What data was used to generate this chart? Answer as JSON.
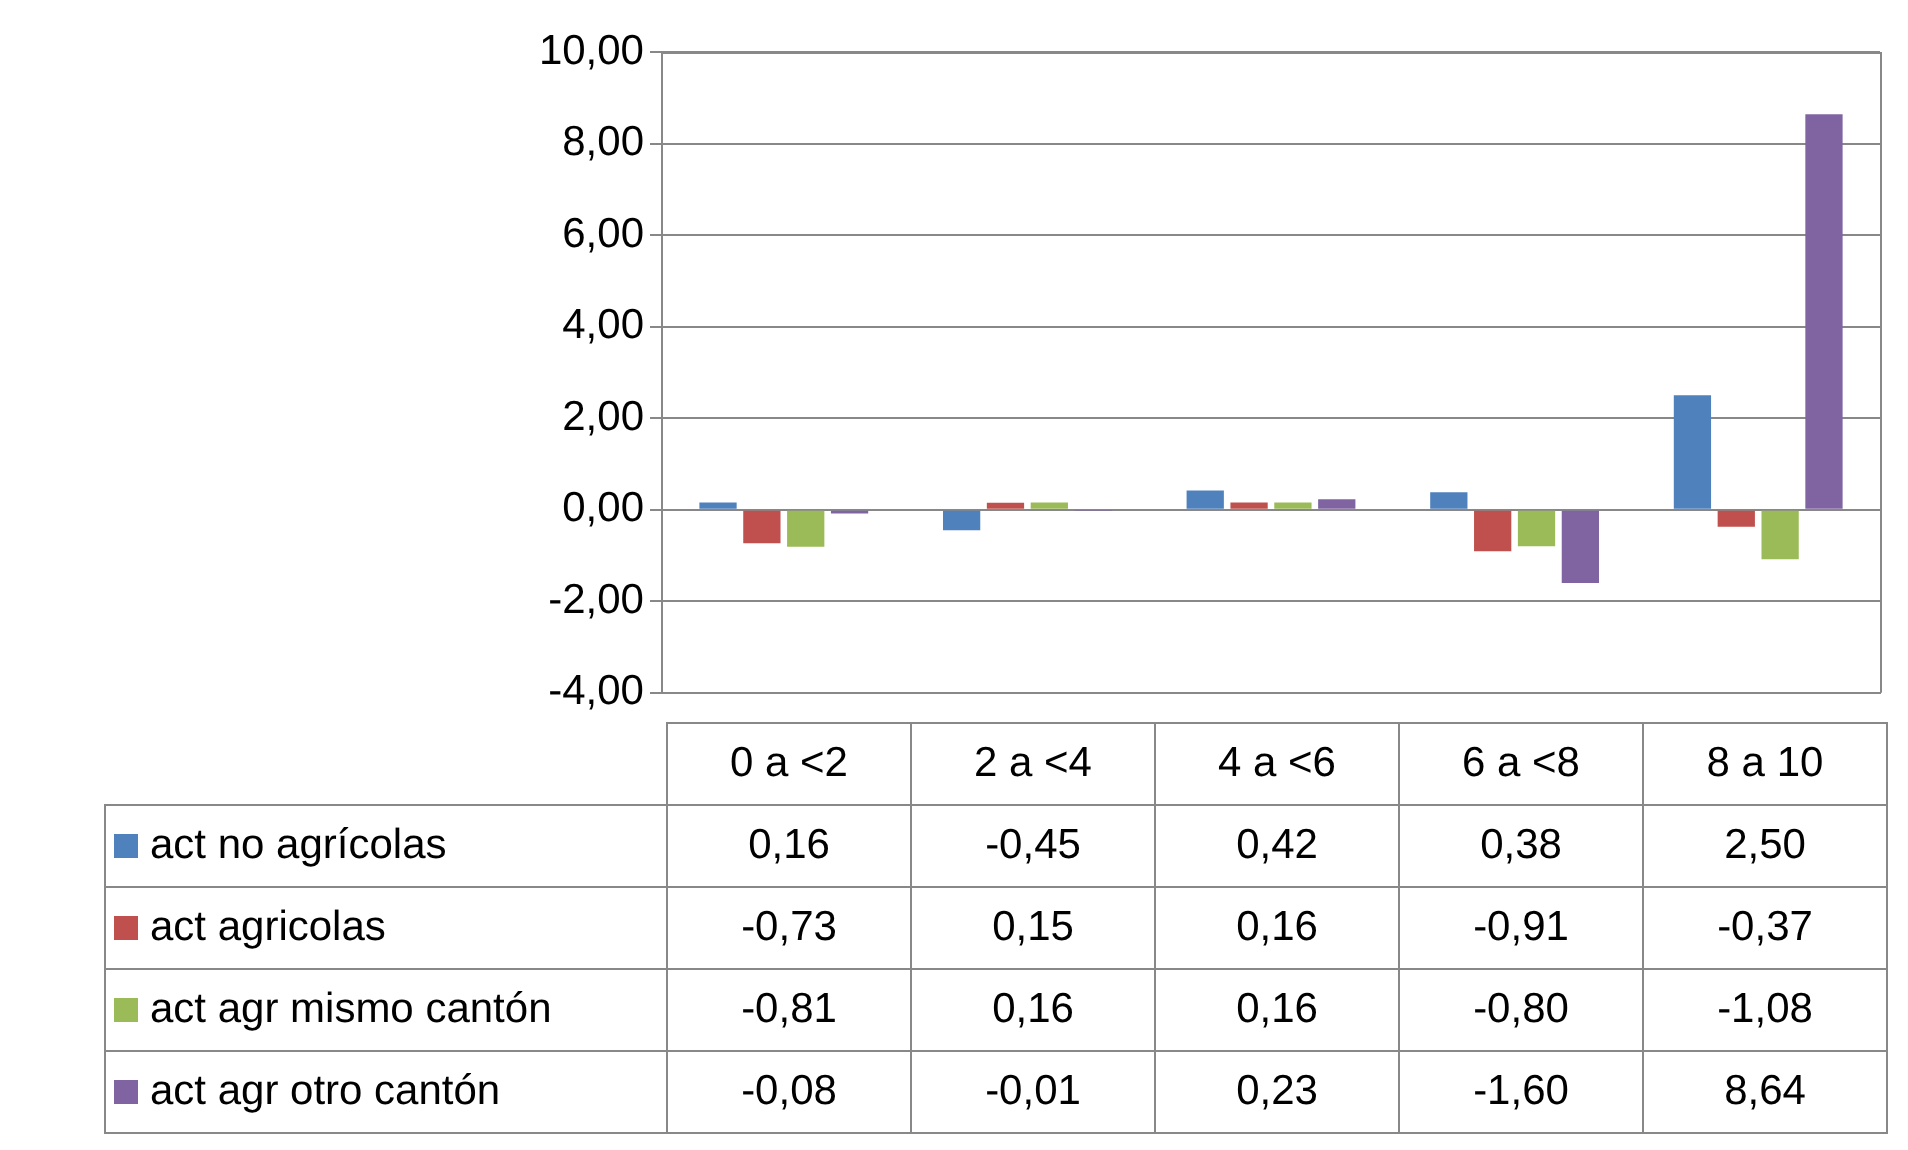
{
  "chart_data": {
    "type": "bar",
    "categories": [
      "0 a <2",
      "2 a <4",
      "4 a <6",
      "6 a <8",
      "8 a 10"
    ],
    "series": [
      {
        "name": "act no agrícolas",
        "color": "#4f81bd",
        "values": [
          0.16,
          -0.45,
          0.42,
          0.38,
          2.5
        ],
        "value_labels": [
          "0,16",
          "-0,45",
          "0,42",
          "0,38",
          "2,50"
        ]
      },
      {
        "name": "act agricolas",
        "color": "#c0504d",
        "values": [
          -0.73,
          0.15,
          0.16,
          -0.91,
          -0.37
        ],
        "value_labels": [
          "-0,73",
          "0,15",
          "0,16",
          "-0,91",
          "-0,37"
        ]
      },
      {
        "name": "act agr mismo cantón",
        "color": "#9bbb59",
        "values": [
          -0.81,
          0.16,
          0.16,
          -0.8,
          -1.08
        ],
        "value_labels": [
          "-0,81",
          "0,16",
          "0,16",
          "-0,80",
          "-1,08"
        ]
      },
      {
        "name": "act agr otro cantón",
        "color": "#8064a2",
        "values": [
          -0.08,
          -0.01,
          0.23,
          -1.6,
          8.64
        ],
        "value_labels": [
          "-0,08",
          "-0,01",
          "0,23",
          "-1,60",
          "8,64"
        ]
      }
    ],
    "ylim": [
      -4,
      10
    ],
    "yticks": [
      {
        "value": -4,
        "label": "-4,00"
      },
      {
        "value": -2,
        "label": "-2,00"
      },
      {
        "value": 0,
        "label": "0,00"
      },
      {
        "value": 2,
        "label": "2,00"
      },
      {
        "value": 4,
        "label": "4,00"
      },
      {
        "value": 6,
        "label": "6,00"
      },
      {
        "value": 8,
        "label": "8,00"
      },
      {
        "value": 10,
        "label": "10,00"
      }
    ],
    "grid": "y",
    "legend": "left"
  }
}
